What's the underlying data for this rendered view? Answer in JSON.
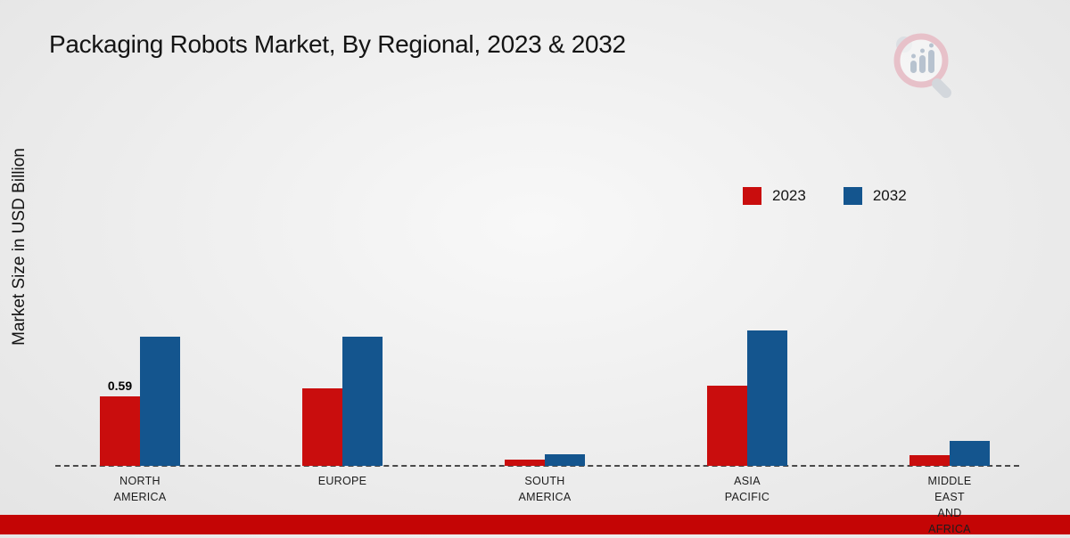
{
  "page": {
    "title": "Packaging Robots Market, By Regional, 2023 & 2032",
    "y_axis_label": "Market Size in USD Billion",
    "footer_color": "#c40505",
    "logo_name": "market-research-brand-logo"
  },
  "legend": {
    "items": [
      {
        "label": "2023",
        "color": "#c90d0d"
      },
      {
        "label": "2032",
        "color": "#14558e"
      }
    ],
    "position": "right-middle"
  },
  "chart_data": {
    "type": "bar",
    "title": "Packaging Robots Market, By Regional, 2023 & 2032",
    "xlabel": "",
    "ylabel": "Market Size in USD Billion",
    "ylim": [
      0,
      1.3
    ],
    "grid": false,
    "axis_style": "dashed-baseline-only",
    "categories": [
      "NORTH\nAMERICA",
      "EUROPE",
      "SOUTH\nAMERICA",
      "ASIA\nPACIFIC",
      "MIDDLE\nEAST\nAND\nAFRICA"
    ],
    "series": [
      {
        "name": "2023",
        "color": "#c90d0d",
        "values": [
          0.59,
          0.66,
          0.05,
          0.68,
          0.09
        ]
      },
      {
        "name": "2032",
        "color": "#14558e",
        "values": [
          1.1,
          1.1,
          0.1,
          1.15,
          0.21
        ]
      }
    ],
    "data_labels": [
      {
        "series": "2023",
        "category_index": 0,
        "text": "0.59"
      }
    ]
  }
}
